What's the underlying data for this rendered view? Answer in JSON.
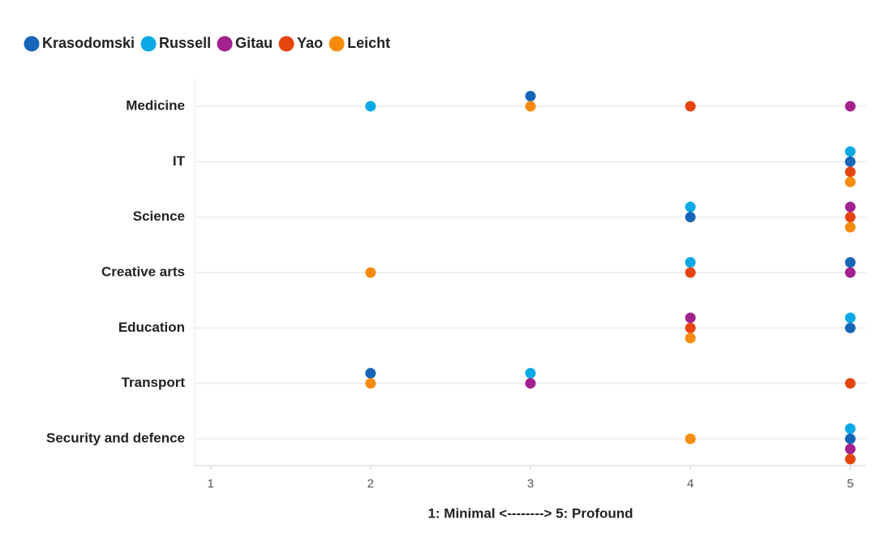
{
  "chart_data": {
    "type": "dot",
    "categories": [
      "Medicine",
      "IT",
      "Science",
      "Creative arts",
      "Education",
      "Transport",
      "Security and defence"
    ],
    "series": [
      {
        "name": "Krasodomski",
        "color": "#1666b8",
        "values": [
          3,
          5,
          4,
          5,
          5,
          2,
          5
        ]
      },
      {
        "name": "Russell",
        "color": "#0aa9e6",
        "values": [
          2,
          5,
          4,
          4,
          5,
          3,
          5
        ]
      },
      {
        "name": "Gitau",
        "color": "#a3228f",
        "values": [
          5,
          null,
          5,
          5,
          4,
          3,
          5
        ]
      },
      {
        "name": "Yao",
        "color": "#e6450f",
        "values": [
          4,
          5,
          5,
          4,
          4,
          5,
          5
        ]
      },
      {
        "name": "Leicht",
        "color": "#f78b0d",
        "values": [
          3,
          5,
          5,
          2,
          4,
          2,
          4
        ]
      }
    ],
    "xlim": [
      0.9,
      5.1
    ],
    "xticks": [
      1,
      2,
      3,
      4,
      5
    ],
    "xlabel": "1: Minimal <--------> 5: Profound",
    "grid": true,
    "legend": "top"
  }
}
